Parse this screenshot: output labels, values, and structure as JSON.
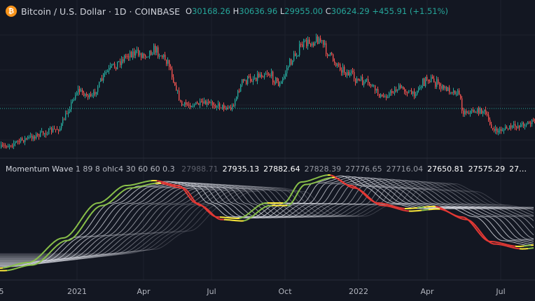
{
  "header": {
    "symbol": "Bitcoin / U.S. Dollar · 1D · COINBASE",
    "logo": "bitcoin-icon",
    "open_label": "O",
    "open": "30168.26",
    "high_label": "H",
    "high": "30636.96",
    "low_label": "L",
    "low": "29955.00",
    "close_label": "C",
    "close": "30624.29",
    "change": "+455.91 (+1.51%)"
  },
  "indicator": {
    "name": "Momentum Wave",
    "params": "1 89 8 ohlc4 30 60 60 0.3",
    "values": [
      {
        "v": "27988.71",
        "c": "#5d606b"
      },
      {
        "v": "27935.13",
        "c": "#ffffff"
      },
      {
        "v": "27882.64",
        "c": "#ffffff"
      },
      {
        "v": "27828.39",
        "c": "#9598a1"
      },
      {
        "v": "27776.65",
        "c": "#9598a1"
      },
      {
        "v": "27716.04",
        "c": "#9598a1"
      },
      {
        "v": "27650.81",
        "c": "#ffffff"
      },
      {
        "v": "27575.29",
        "c": "#ffffff"
      },
      {
        "v": "27…",
        "c": "#ffffff"
      }
    ]
  },
  "x_axis": [
    "5",
    "2021",
    "Apr",
    "Jul",
    "Oct",
    "2022",
    "Apr",
    "Jul"
  ],
  "colors": {
    "up": "#26a69a",
    "down": "#ef5350",
    "wave_up": "#8bc34a",
    "wave_down": "#e53935",
    "wave_peak": "#ffeb3b",
    "background": "#131722"
  }
}
